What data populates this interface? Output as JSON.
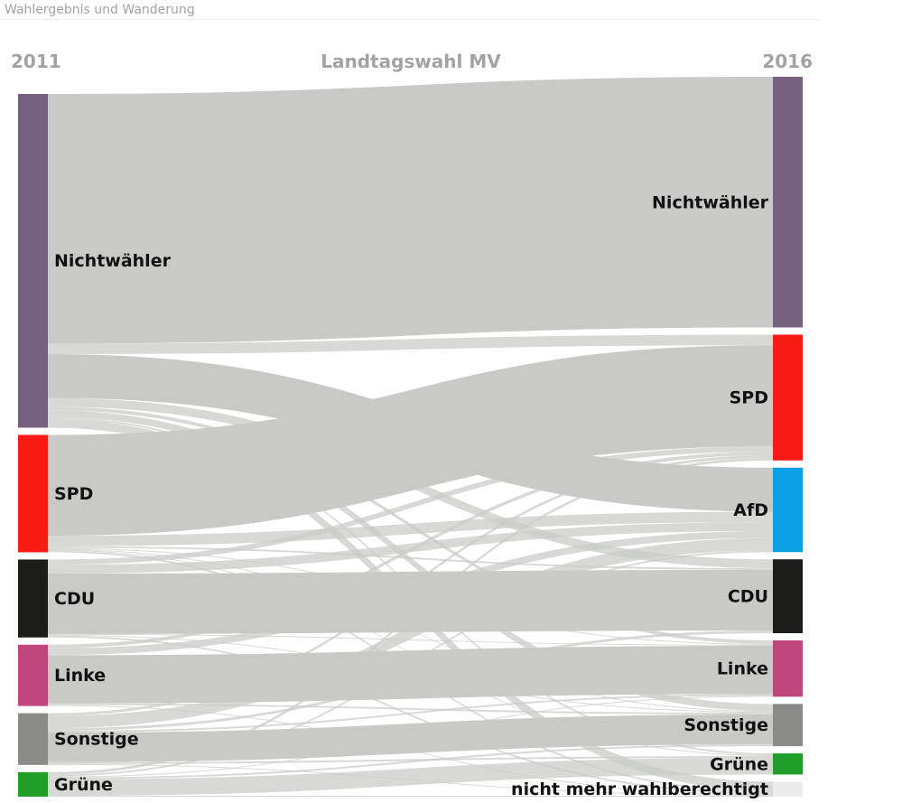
{
  "header": {
    "title": "Wahlergebnis und Wanderung",
    "year_left": "2011",
    "center": "Landtagswahl MV",
    "year_right": "2016"
  },
  "colors": {
    "link": "#c9cac8",
    "link_dark": "#9d9e9c"
  },
  "chart_data": {
    "type": "sankey",
    "left_nodes": [
      {
        "id": "l_nw",
        "label": "Nichtwähler",
        "color": "#766280"
      },
      {
        "id": "l_spd",
        "label": "SPD",
        "color": "#fa1a14"
      },
      {
        "id": "l_cdu",
        "label": "CDU",
        "color": "#1c1c1a"
      },
      {
        "id": "l_linke",
        "label": "Linke",
        "color": "#c2467e"
      },
      {
        "id": "l_sonst",
        "label": "Sonstige",
        "color": "#8a8a88"
      },
      {
        "id": "l_gruene",
        "label": "Grüne",
        "color": "#219e27"
      }
    ],
    "right_nodes": [
      {
        "id": "r_nw",
        "label": "Nichtwähler",
        "color": "#766280"
      },
      {
        "id": "r_spd",
        "label": "SPD",
        "color": "#fa1a14"
      },
      {
        "id": "r_afd",
        "label": "AfD",
        "color": "#0ba0e4"
      },
      {
        "id": "r_cdu",
        "label": "CDU",
        "color": "#1c1c1a"
      },
      {
        "id": "r_linke",
        "label": "Linke",
        "color": "#c2467e"
      },
      {
        "id": "r_sonst",
        "label": "Sonstige",
        "color": "#8a8a88"
      },
      {
        "id": "r_gruene",
        "label": "Grüne",
        "color": "#219e27"
      },
      {
        "id": "r_nmwb",
        "label": "nicht mehr wahlberechtigt",
        "color": "#ececec"
      }
    ],
    "links": [
      {
        "source": "l_nw",
        "target": "r_nw",
        "value": 285
      },
      {
        "source": "l_nw",
        "target": "r_spd",
        "value": 12
      },
      {
        "source": "l_nw",
        "target": "r_afd",
        "value": 50
      },
      {
        "source": "l_nw",
        "target": "r_cdu",
        "value": 10
      },
      {
        "source": "l_nw",
        "target": "r_linke",
        "value": 4
      },
      {
        "source": "l_nw",
        "target": "r_sonst",
        "value": 8
      },
      {
        "source": "l_nw",
        "target": "r_gruene",
        "value": 2
      },
      {
        "source": "l_nw",
        "target": "r_nmwb",
        "value": 10
      },
      {
        "source": "l_spd",
        "target": "r_spd",
        "value": 115
      },
      {
        "source": "l_spd",
        "target": "r_afd",
        "value": 12
      },
      {
        "source": "l_spd",
        "target": "r_cdu",
        "value": 2
      },
      {
        "source": "l_spd",
        "target": "r_linke",
        "value": 1
      },
      {
        "source": "l_spd",
        "target": "r_sonst",
        "value": 1
      },
      {
        "source": "l_spd",
        "target": "r_gruene",
        "value": 1
      },
      {
        "source": "l_spd",
        "target": "r_nmwb",
        "value": 2
      },
      {
        "source": "l_cdu",
        "target": "r_spd",
        "value": 6
      },
      {
        "source": "l_cdu",
        "target": "r_afd",
        "value": 10
      },
      {
        "source": "l_cdu",
        "target": "r_cdu",
        "value": 69
      },
      {
        "source": "l_cdu",
        "target": "r_linke",
        "value": 1
      },
      {
        "source": "l_cdu",
        "target": "r_sonst",
        "value": 1
      },
      {
        "source": "l_cdu",
        "target": "r_nmwb",
        "value": 2
      },
      {
        "source": "l_linke",
        "target": "r_spd",
        "value": 4
      },
      {
        "source": "l_linke",
        "target": "r_afd",
        "value": 8
      },
      {
        "source": "l_linke",
        "target": "r_linke",
        "value": 55
      },
      {
        "source": "l_linke",
        "target": "r_sonst",
        "value": 2
      },
      {
        "source": "l_linke",
        "target": "r_nmwb",
        "value": 1
      },
      {
        "source": "l_sonst",
        "target": "r_spd",
        "value": 3
      },
      {
        "source": "l_sonst",
        "target": "r_afd",
        "value": 14
      },
      {
        "source": "l_sonst",
        "target": "r_cdu",
        "value": 3
      },
      {
        "source": "l_sonst",
        "target": "r_linke",
        "value": 2
      },
      {
        "source": "l_sonst",
        "target": "r_sonst",
        "value": 34
      },
      {
        "source": "l_sonst",
        "target": "r_gruene",
        "value": 2
      },
      {
        "source": "l_sonst",
        "target": "r_nmwb",
        "value": 1
      },
      {
        "source": "l_gruene",
        "target": "r_spd",
        "value": 3
      },
      {
        "source": "l_gruene",
        "target": "r_afd",
        "value": 2
      },
      {
        "source": "l_gruene",
        "target": "r_linke",
        "value": 1
      },
      {
        "source": "l_gruene",
        "target": "r_sonst",
        "value": 2
      },
      {
        "source": "l_gruene",
        "target": "r_gruene",
        "value": 19
      },
      {
        "source": "l_gruene",
        "target": "r_nmwb",
        "value": 1
      }
    ]
  }
}
